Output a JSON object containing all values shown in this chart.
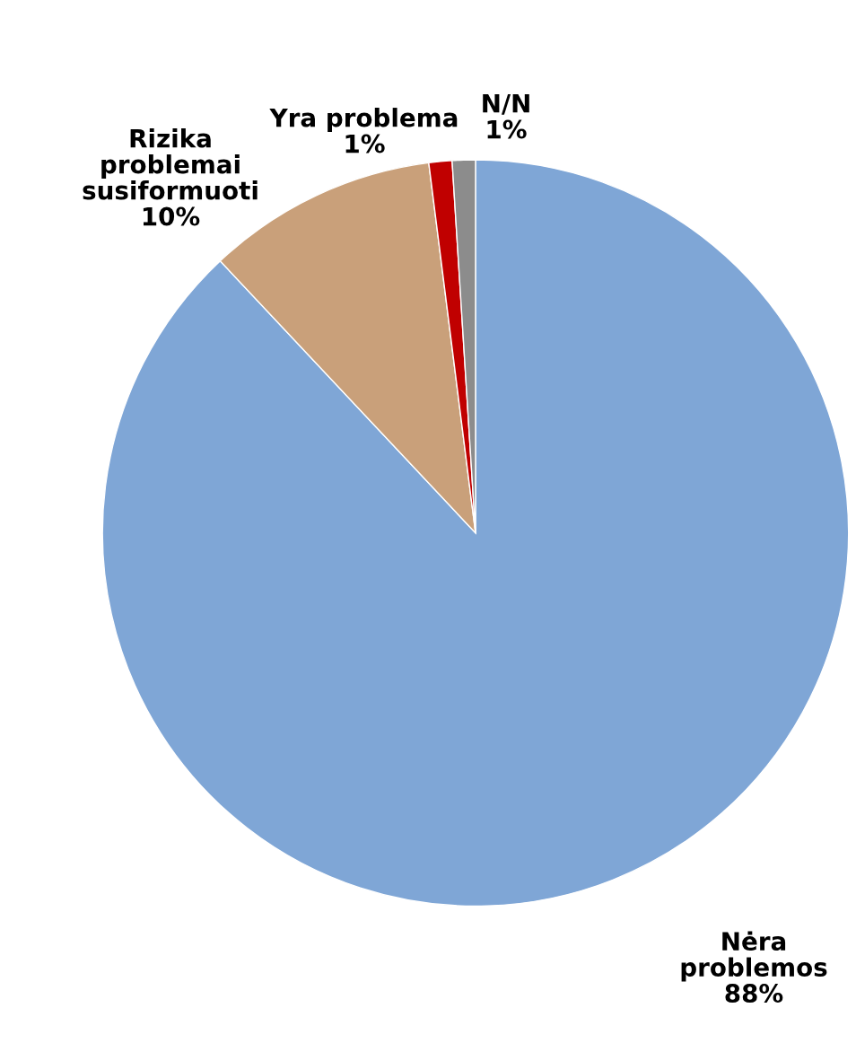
{
  "chart_data": {
    "type": "pie",
    "categories": [
      "Nėra\nproblemos",
      "Rizika\nproblemai\nsusiformuoti",
      "Yra problema",
      "N/N"
    ],
    "values": [
      88,
      10,
      1,
      1
    ],
    "value_labels": [
      "88%",
      "10%",
      "1%",
      "1%"
    ],
    "colors": [
      "#7fa6d6",
      "#c9a07a",
      "#c00000",
      "#8c8c8c"
    ],
    "legend": false
  }
}
